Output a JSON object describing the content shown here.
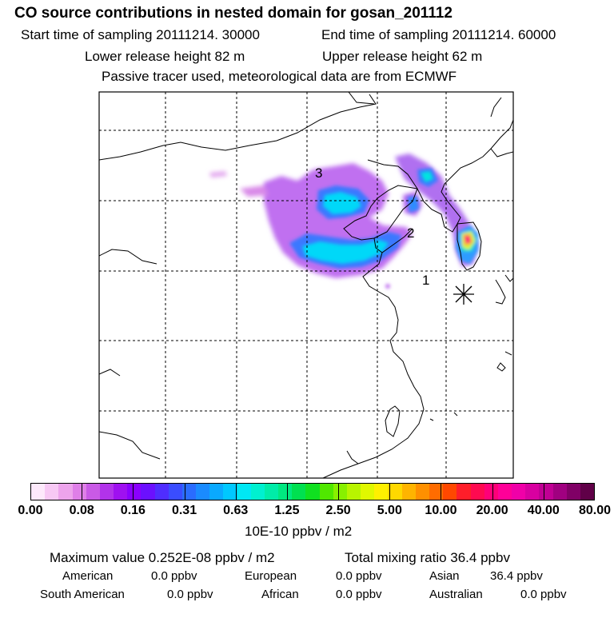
{
  "header": {
    "title": "CO  source contributions in nested domain for gosan_201112",
    "start_label": "Start time of sampling 20111214. 30000",
    "end_label": "End time of sampling 20111214. 60000",
    "lower_release": "Lower release height   82 m",
    "upper_release": "Upper release height   62 m",
    "tracer_note": "Passive tracer used, meteorological data are from ECMWF"
  },
  "map": {
    "region_labels": [
      "3",
      "2",
      "1"
    ],
    "receptor_marker": "asterisk-receptor"
  },
  "colorbar": {
    "colors": [
      "#fde9fb",
      "#f7c8f4",
      "#eda4ec",
      "#df7fe8",
      "#c95ae6",
      "#b233ea",
      "#9f11f0",
      "#8a00ff",
      "#6b10ff",
      "#4f2dff",
      "#3a4dff",
      "#2a6cff",
      "#1a8bff",
      "#0aa9ff",
      "#00c8ff",
      "#00e8f4",
      "#00f0d0",
      "#00eca8",
      "#00e880",
      "#00e050",
      "#10e020",
      "#50e800",
      "#88f000",
      "#b8f400",
      "#e0f800",
      "#fff000",
      "#ffd800",
      "#ffb400",
      "#ff9000",
      "#ff6c00",
      "#ff4800",
      "#ff1e2a",
      "#ff0a50",
      "#ff0078",
      "#ff0098",
      "#f000a8",
      "#d800a0",
      "#c00094",
      "#a00080",
      "#800066",
      "#600048"
    ],
    "tick_labels": [
      "0.00",
      "0.08",
      "0.16",
      "0.31",
      "0.63",
      "1.25",
      "2.50",
      "5.00",
      "10.00",
      "20.00",
      "40.00",
      "80.00"
    ],
    "unit_label": "10E-10 ppbv / m2"
  },
  "summary": {
    "maximum": "Maximum value  0.252E-08 ppbv / m2",
    "total": "Total mixing ratio       36.4 ppbv",
    "american_label": "American",
    "american_value": "0.0 ppbv",
    "european_label": "European",
    "european_value": "0.0 ppbv",
    "asian_label": "Asian",
    "asian_value": "36.4 ppbv",
    "south_american_label": "South American",
    "south_american_value": "0.0 ppbv",
    "african_label": "African",
    "african_value": "0.0 ppbv",
    "australian_label": "Australian",
    "australian_value": "0.0 ppbv"
  }
}
